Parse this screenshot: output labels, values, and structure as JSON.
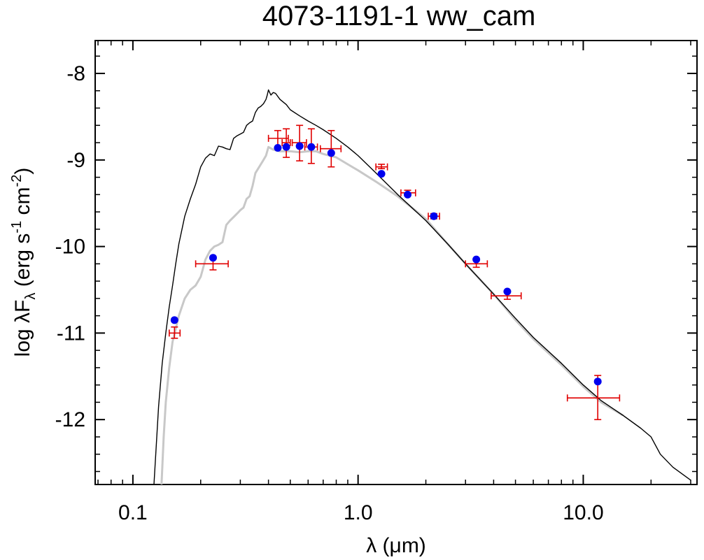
{
  "chart_data": {
    "type": "scatter",
    "title": "4073-1191-1   ww_cam",
    "xlabel": "λ (μm)",
    "ylabel": {
      "base": "log λF",
      "sub": "λ",
      "units_open": " (erg s",
      "exp1": "-1",
      "units_mid": " cm",
      "exp2": "-2",
      "units_close": ")"
    },
    "xscale": "log",
    "xlim": [
      0.068,
      32
    ],
    "ylim": [
      -12.75,
      -7.62
    ],
    "xticks": [
      {
        "value": 0.1,
        "label": "0.1"
      },
      {
        "value": 1.0,
        "label": "1.0"
      },
      {
        "value": 10.0,
        "label": "10.0"
      }
    ],
    "yticks": [
      {
        "value": -8,
        "label": "-8"
      },
      {
        "value": -9,
        "label": "-9"
      },
      {
        "value": -10,
        "label": "-10"
      },
      {
        "value": -11,
        "label": "-11"
      },
      {
        "value": -12,
        "label": "-12"
      }
    ],
    "grid": false,
    "colors": {
      "model_black": "#000000",
      "model_gray": "#c8c8c8",
      "observed": "#e00000",
      "synthetic": "#0000ee"
    },
    "series": [
      {
        "name": "model spectrum (unreddened)",
        "kind": "line",
        "color": "#000000",
        "x": [
          0.124,
          0.127,
          0.13,
          0.135,
          0.14,
          0.145,
          0.15,
          0.155,
          0.16,
          0.17,
          0.18,
          0.19,
          0.2,
          0.21,
          0.22,
          0.23,
          0.24,
          0.25,
          0.26,
          0.27,
          0.28,
          0.29,
          0.3,
          0.31,
          0.32,
          0.33,
          0.34,
          0.35,
          0.36,
          0.37,
          0.38,
          0.39,
          0.395,
          0.4,
          0.41,
          0.42,
          0.43,
          0.45,
          0.48,
          0.5,
          0.55,
          0.6,
          0.65,
          0.7,
          0.8,
          0.9,
          1.0,
          1.2,
          1.5,
          2.0,
          2.5,
          3.0,
          4.0,
          5.0,
          6.0,
          8.0,
          10.0,
          12.0,
          15.0,
          18.0,
          20.0,
          22.0,
          25.0,
          30.0
        ],
        "y": [
          -12.75,
          -12.3,
          -11.85,
          -11.35,
          -11.0,
          -10.7,
          -10.45,
          -10.2,
          -9.97,
          -9.65,
          -9.45,
          -9.28,
          -9.08,
          -8.98,
          -8.93,
          -8.95,
          -8.84,
          -8.85,
          -8.87,
          -8.88,
          -8.75,
          -8.72,
          -8.7,
          -8.68,
          -8.6,
          -8.57,
          -8.55,
          -8.45,
          -8.4,
          -8.38,
          -8.35,
          -8.3,
          -8.25,
          -8.19,
          -8.25,
          -8.22,
          -8.23,
          -8.3,
          -8.36,
          -8.42,
          -8.49,
          -8.55,
          -8.6,
          -8.65,
          -8.75,
          -8.85,
          -8.95,
          -9.15,
          -9.4,
          -9.7,
          -9.97,
          -10.2,
          -10.55,
          -10.83,
          -11.05,
          -11.35,
          -11.6,
          -11.78,
          -11.95,
          -12.1,
          -12.2,
          -12.4,
          -12.55,
          -12.7
        ]
      },
      {
        "name": "model spectrum (reddened)",
        "kind": "line",
        "color": "#c8c8c8",
        "x": [
          0.134,
          0.137,
          0.14,
          0.145,
          0.15,
          0.155,
          0.16,
          0.17,
          0.18,
          0.19,
          0.2,
          0.21,
          0.22,
          0.23,
          0.24,
          0.25,
          0.26,
          0.27,
          0.28,
          0.29,
          0.3,
          0.31,
          0.32,
          0.33,
          0.34,
          0.35,
          0.36,
          0.37,
          0.38,
          0.39,
          0.4,
          0.42,
          0.45,
          0.5,
          0.55,
          0.6,
          0.65,
          0.7,
          0.8,
          0.9,
          1.0,
          1.2,
          1.5,
          2.0,
          2.5,
          3.0,
          4.0,
          5.0,
          6.0,
          8.0,
          10.0,
          12.0,
          15.0
        ],
        "y": [
          -12.75,
          -12.2,
          -11.8,
          -11.4,
          -11.1,
          -10.95,
          -10.8,
          -10.6,
          -10.5,
          -10.45,
          -10.35,
          -10.15,
          -10.05,
          -10.0,
          -9.98,
          -9.95,
          -9.75,
          -9.7,
          -9.66,
          -9.62,
          -9.58,
          -9.55,
          -9.45,
          -9.42,
          -9.3,
          -9.15,
          -9.1,
          -9.05,
          -9.0,
          -8.95,
          -8.85,
          -8.88,
          -8.9,
          -8.9,
          -8.91,
          -8.9,
          -8.9,
          -8.93,
          -8.97,
          -9.05,
          -9.12,
          -9.25,
          -9.42,
          -9.68,
          -9.97,
          -10.2,
          -10.55,
          -10.85,
          -11.07,
          -11.37,
          -11.62,
          -11.8,
          -11.95
        ]
      },
      {
        "name": "observed photometry",
        "kind": "errorbar",
        "color": "#e00000",
        "x": [
          0.153,
          0.227,
          0.44,
          0.48,
          0.55,
          0.62,
          0.76,
          1.27,
          1.66,
          2.17,
          3.35,
          4.6,
          11.6
        ],
        "y": [
          -11.0,
          -10.2,
          -8.75,
          -8.8,
          -8.8,
          -8.85,
          -8.87,
          -9.08,
          -9.38,
          -9.65,
          -10.2,
          -10.57,
          -11.75
        ],
        "xerr": [
          [
            0.145,
            0.162
          ],
          [
            0.19,
            0.265
          ],
          [
            0.4,
            0.49
          ],
          [
            0.46,
            0.5
          ],
          [
            0.51,
            0.59
          ],
          [
            0.58,
            0.66
          ],
          [
            0.68,
            0.84
          ],
          [
            1.2,
            1.35
          ],
          [
            1.55,
            1.8
          ],
          [
            2.05,
            2.3
          ],
          [
            3.0,
            3.75
          ],
          [
            3.9,
            5.3
          ],
          [
            8.5,
            14.5
          ]
        ],
        "yerr": [
          [
            -11.06,
            -10.93
          ],
          [
            -10.27,
            -10.13
          ],
          [
            -8.87,
            -8.66
          ],
          [
            -8.97,
            -8.64
          ],
          [
            -9.01,
            -8.6
          ],
          [
            -9.04,
            -8.64
          ],
          [
            -9.08,
            -8.66
          ],
          [
            -9.1,
            -9.05
          ],
          [
            -9.41,
            -9.35
          ],
          [
            -9.68,
            -9.62
          ],
          [
            -10.24,
            -10.16
          ],
          [
            -10.61,
            -10.53
          ],
          [
            -12.0,
            -11.49
          ]
        ]
      },
      {
        "name": "synthetic photometry",
        "kind": "scatter",
        "color": "#0000ee",
        "x": [
          0.153,
          0.227,
          0.44,
          0.48,
          0.55,
          0.62,
          0.76,
          1.27,
          1.66,
          2.17,
          3.35,
          4.6,
          11.6
        ],
        "y": [
          -10.85,
          -10.13,
          -8.86,
          -8.85,
          -8.84,
          -8.85,
          -8.92,
          -9.16,
          -9.4,
          -9.65,
          -10.15,
          -10.52,
          -11.56
        ]
      }
    ]
  }
}
